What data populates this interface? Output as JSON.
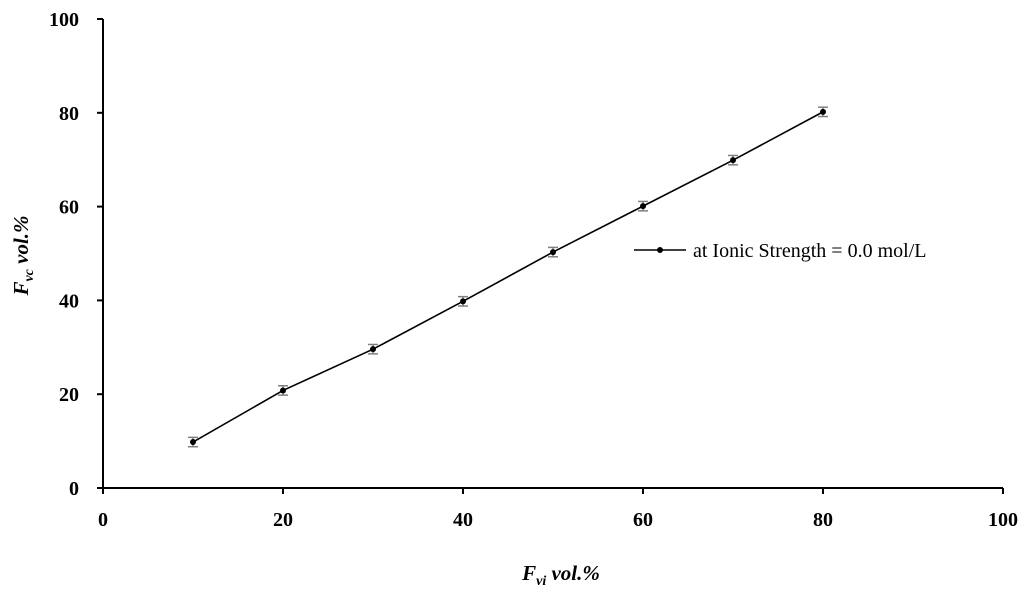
{
  "chart_data": {
    "type": "line",
    "title": "",
    "xlabel": {
      "main": "F",
      "sub": "vi",
      "rest": " vol.%"
    },
    "ylabel": {
      "main": "F",
      "sub": "vc",
      "rest": " vol.%"
    },
    "xlim": [
      0,
      100
    ],
    "ylim": [
      0,
      100
    ],
    "x_ticks": [
      "0",
      "20",
      "40",
      "60",
      "80",
      "100"
    ],
    "y_ticks": [
      "0",
      "20",
      "40",
      "60",
      "80",
      "100"
    ],
    "grid": false,
    "legend_position": "right",
    "series": [
      {
        "name": "at Ionic Strength = 0.0 mol/L",
        "color": "#000000",
        "error_bar_color": "#808080",
        "x": [
          10,
          20,
          30,
          40,
          50,
          60,
          70,
          80
        ],
        "y": [
          9.8,
          20.8,
          29.6,
          39.8,
          50.3,
          60.1,
          69.9,
          80.2
        ],
        "error": [
          1.0,
          1.0,
          1.0,
          1.0,
          1.0,
          1.0,
          1.0,
          1.0
        ]
      }
    ]
  }
}
